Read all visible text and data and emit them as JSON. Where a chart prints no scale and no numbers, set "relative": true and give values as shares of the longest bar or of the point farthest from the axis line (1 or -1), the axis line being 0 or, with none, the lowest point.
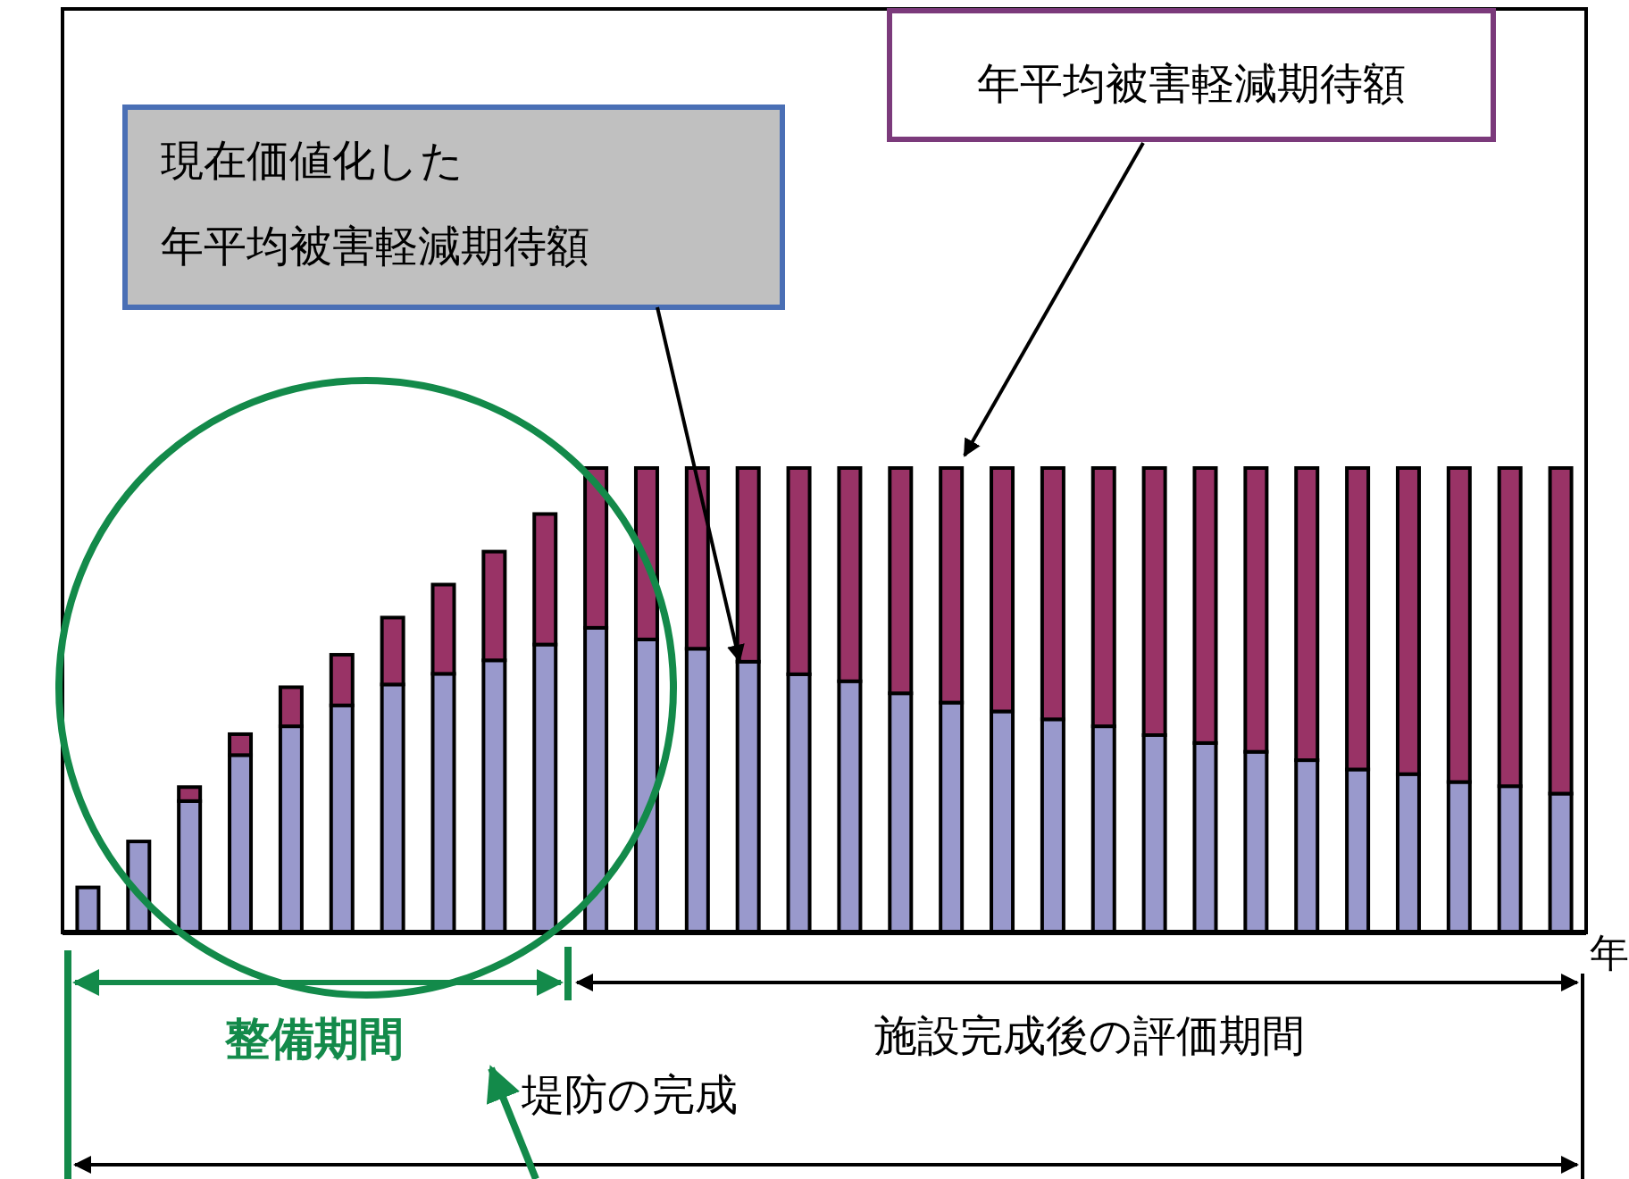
{
  "chart_data": {
    "type": "bar",
    "stacked": true,
    "relative": true,
    "xlabel": "年",
    "categories": [
      null,
      null,
      null,
      null,
      null,
      null,
      null,
      null,
      null,
      null,
      null,
      null,
      null,
      null,
      null,
      null,
      null,
      null,
      null,
      null,
      null,
      null,
      null,
      null,
      null,
      null,
      null,
      null,
      null,
      null
    ],
    "series": [
      {
        "color": "#9999cc",
        "values": [
          0.097,
          0.196,
          0.283,
          0.382,
          0.444,
          0.489,
          0.534,
          0.557,
          0.586,
          0.62,
          0.656,
          0.631,
          0.611,
          0.583,
          0.556,
          0.541,
          0.515,
          0.495,
          0.476,
          0.459,
          0.444,
          0.425,
          0.408,
          0.389,
          0.371,
          0.351,
          0.341,
          0.324,
          0.315,
          0.299
        ]
      },
      {
        "color": "#993366",
        "values": [
          0,
          0,
          0.03,
          0.045,
          0.084,
          0.109,
          0.144,
          0.192,
          0.234,
          0.281,
          0.344,
          0.369,
          0.389,
          0.417,
          0.444,
          0.459,
          0.485,
          0.505,
          0.524,
          0.541,
          0.556,
          0.575,
          0.592,
          0.611,
          0.629,
          0.649,
          0.659,
          0.676,
          0.685,
          0.701
        ]
      }
    ],
    "annotations": [
      "整備期間",
      "施設完成後の評価期間",
      "堤防の完成",
      "現在価値化した",
      "年平均被害軽減期待額",
      "年平均被害軽減期待額"
    ]
  }
}
